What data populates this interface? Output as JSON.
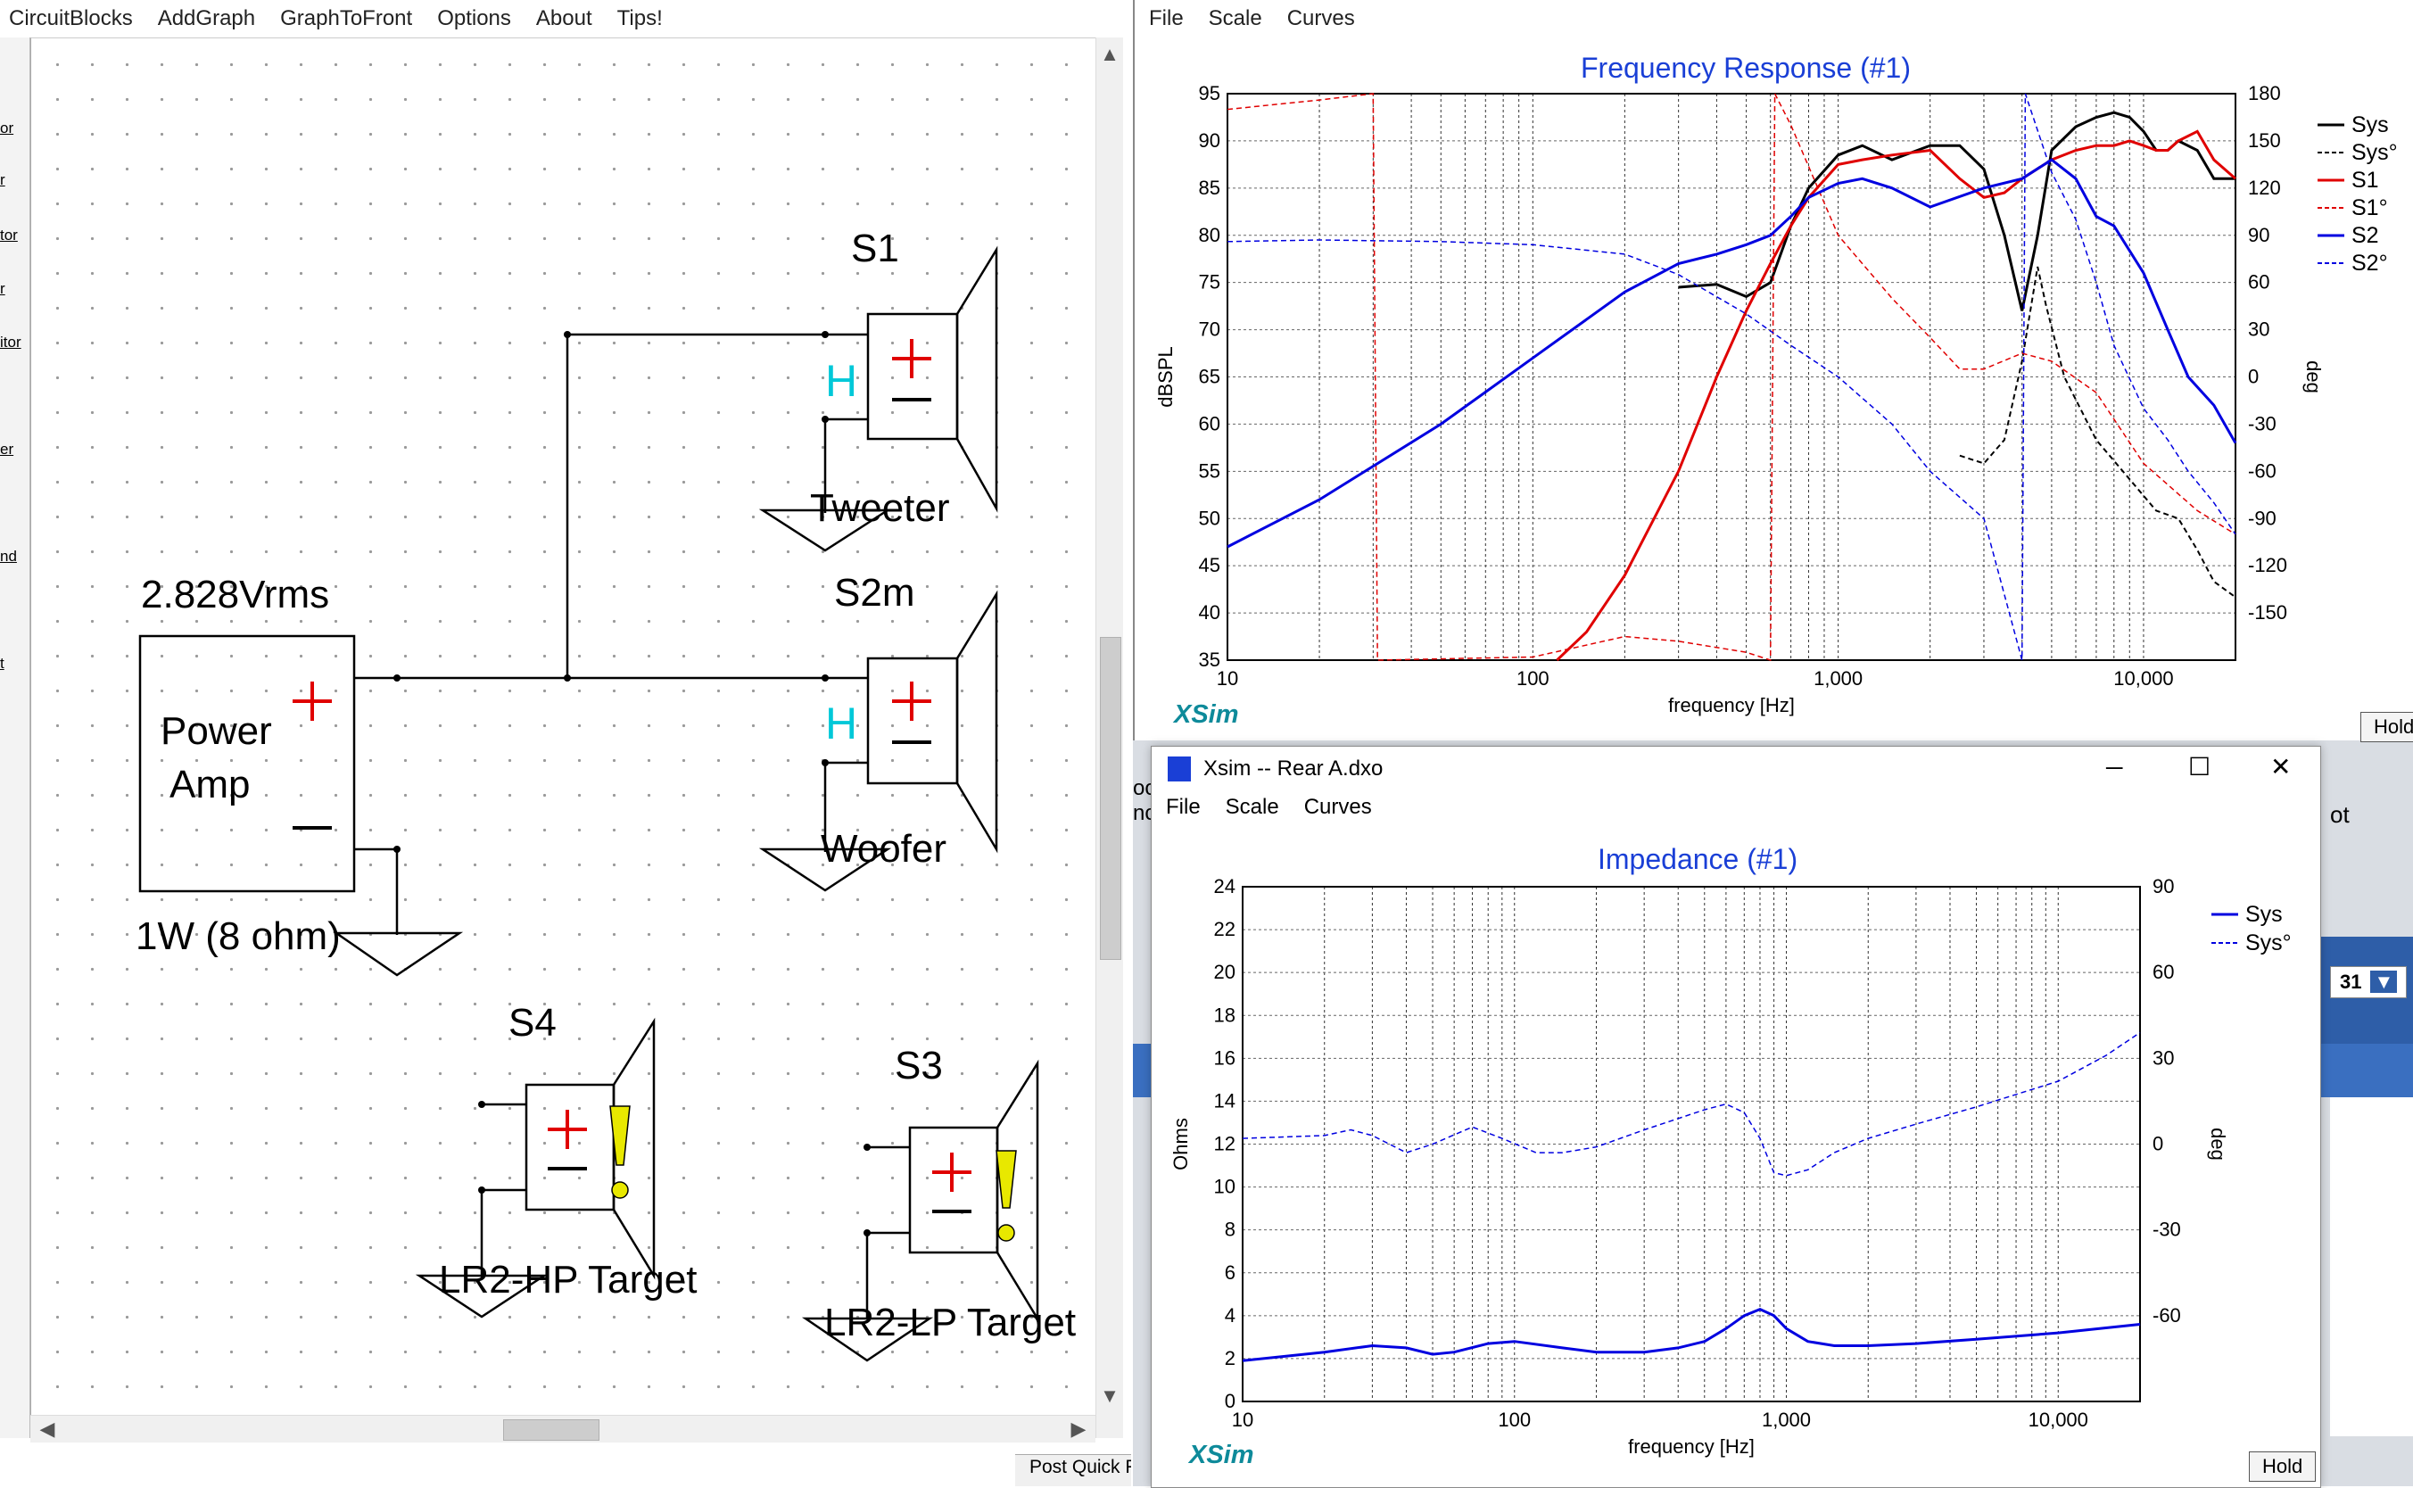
{
  "schematic": {
    "menu": [
      "CircuitBlocks",
      "AddGraph",
      "GraphToFront",
      "Options",
      "About",
      "Tips!"
    ],
    "gutter_fragments": [
      "or",
      "r",
      "tor",
      "r",
      "itor",
      "er",
      "nd",
      "t"
    ],
    "labels": {
      "s1": "S1",
      "s2m": "S2m",
      "s4": "S4",
      "s3": "S3",
      "tweeter": "Tweeter",
      "woofer": "Woofer",
      "hp_target": "LR2-HP Target",
      "lp_target": "LR2-LP Target",
      "voltage": "2.828Vrms",
      "amp_line1": "Power",
      "amp_line2": "Amp",
      "power_note": "1W (8 ohm)",
      "highpass_symbol": "H"
    },
    "colors": {
      "plus": "#e00000",
      "hp_symbol": "#00c8d8",
      "warning": "#e8e800"
    }
  },
  "freq_window": {
    "menu": [
      "File",
      "Scale",
      "Curves"
    ],
    "title": "Frequency Response (#1)",
    "xlabel": "frequency [Hz]",
    "ylabel": "dBSPL",
    "y2label": "deg",
    "logo": "XSim",
    "hold_label": "Hold"
  },
  "imp_window": {
    "titlebar": "Xsim -- Rear A.dxo",
    "menu": [
      "File",
      "Scale",
      "Curves"
    ],
    "title": "Impedance (#1)",
    "xlabel": "frequency [Hz]",
    "ylabel": "Ohms",
    "y2label": "deg",
    "logo": "XSim",
    "hold_label": "Hold",
    "window_controls": {
      "minimize": "─",
      "maximize": "☐",
      "close": "✕"
    }
  },
  "background_fragments": {
    "left_edge_text": [
      "oo",
      "nc"
    ],
    "right_edge_text": "ot",
    "number": "31",
    "footer": "Post Quick R"
  },
  "chart_data": [
    {
      "type": "line",
      "title": "Frequency Response (#1)",
      "xlabel": "frequency [Hz]",
      "ylabel": "dBSPL",
      "y2label": "deg",
      "xscale": "log",
      "xlim": [
        10,
        20000
      ],
      "ylim": [
        35,
        95
      ],
      "y2lim": [
        -180,
        180
      ],
      "xticks": [
        "10",
        "100",
        "1,000",
        "10,000"
      ],
      "yticks": [
        "35",
        "40",
        "45",
        "50",
        "55",
        "60",
        "65",
        "70",
        "75",
        "80",
        "85",
        "90",
        "95"
      ],
      "y2ticks": [
        "-150",
        "-120",
        "-90",
        "-60",
        "-30",
        "0",
        "30",
        "60",
        "90",
        "120",
        "150",
        "180"
      ],
      "grid": true,
      "legend_position": "right",
      "series": [
        {
          "name": "Sys",
          "axis": "y",
          "color": "#000000",
          "style": "solid",
          "width": 3,
          "points": [
            [
              300,
              74.5
            ],
            [
              400,
              74.8
            ],
            [
              500,
              73.5
            ],
            [
              600,
              75
            ],
            [
              700,
              81
            ],
            [
              800,
              85
            ],
            [
              1000,
              88.5
            ],
            [
              1200,
              89.5
            ],
            [
              1500,
              88
            ],
            [
              2000,
              89.5
            ],
            [
              2500,
              89.5
            ],
            [
              3000,
              87
            ],
            [
              3500,
              80
            ],
            [
              4000,
              72
            ],
            [
              4500,
              80
            ],
            [
              5000,
              89
            ],
            [
              6000,
              91.5
            ],
            [
              7000,
              92.5
            ],
            [
              8000,
              93
            ],
            [
              9000,
              92.5
            ],
            [
              10000,
              91
            ],
            [
              11000,
              89
            ],
            [
              12000,
              89
            ],
            [
              13000,
              90
            ],
            [
              15000,
              89
            ],
            [
              17000,
              86
            ],
            [
              20000,
              86
            ]
          ]
        },
        {
          "name": "Sys°",
          "axis": "y2",
          "color": "#000000",
          "style": "dashed",
          "width": 2,
          "points": [
            [
              2500,
              -50
            ],
            [
              3000,
              -55
            ],
            [
              3500,
              -40
            ],
            [
              4000,
              10
            ],
            [
              4500,
              70
            ],
            [
              4800,
              45
            ],
            [
              5500,
              0
            ],
            [
              7000,
              -40
            ],
            [
              9000,
              -65
            ],
            [
              11000,
              -85
            ],
            [
              13000,
              -90
            ],
            [
              15000,
              -110
            ],
            [
              17000,
              -130
            ],
            [
              20000,
              -140
            ]
          ]
        },
        {
          "name": "S1",
          "axis": "y",
          "color": "#e00000",
          "style": "solid",
          "width": 3,
          "points": [
            [
              120,
              35
            ],
            [
              150,
              38
            ],
            [
              200,
              44
            ],
            [
              300,
              55
            ],
            [
              400,
              65
            ],
            [
              500,
              72
            ],
            [
              600,
              77
            ],
            [
              700,
              81
            ],
            [
              800,
              84
            ],
            [
              1000,
              87.5
            ],
            [
              1200,
              88
            ],
            [
              1500,
              88.5
            ],
            [
              2000,
              89
            ],
            [
              2500,
              86
            ],
            [
              3000,
              84
            ],
            [
              3500,
              84.5
            ],
            [
              4000,
              86
            ],
            [
              5000,
              88
            ],
            [
              6000,
              89
            ],
            [
              7000,
              89.5
            ],
            [
              8000,
              89.5
            ],
            [
              9000,
              90
            ],
            [
              10000,
              89.5
            ],
            [
              11000,
              89
            ],
            [
              12000,
              89
            ],
            [
              13000,
              90
            ],
            [
              15000,
              91
            ],
            [
              17000,
              88
            ],
            [
              20000,
              86
            ]
          ]
        },
        {
          "name": "S1°",
          "axis": "y2",
          "color": "#e00000",
          "style": "dashed",
          "width": 1.5,
          "points": [
            [
              10,
              170
            ],
            [
              20,
              176
            ],
            [
              30,
              180
            ],
            [
              31,
              -180
            ],
            [
              100,
              -178
            ],
            [
              200,
              -165
            ],
            [
              300,
              -168
            ],
            [
              500,
              -175
            ],
            [
              600,
              -180
            ],
            [
              620,
              180
            ],
            [
              700,
              160
            ],
            [
              1000,
              90
            ],
            [
              1500,
              50
            ],
            [
              2000,
              25
            ],
            [
              2500,
              5
            ],
            [
              3000,
              5
            ],
            [
              4000,
              15
            ],
            [
              5000,
              10
            ],
            [
              7000,
              -10
            ],
            [
              10000,
              -55
            ],
            [
              15000,
              -85
            ],
            [
              20000,
              -100
            ]
          ]
        },
        {
          "name": "S2",
          "axis": "y",
          "color": "#0000e0",
          "style": "solid",
          "width": 3,
          "points": [
            [
              10,
              47
            ],
            [
              20,
              52
            ],
            [
              50,
              60
            ],
            [
              100,
              67
            ],
            [
              200,
              74
            ],
            [
              300,
              77
            ],
            [
              400,
              78
            ],
            [
              500,
              79
            ],
            [
              600,
              80
            ],
            [
              700,
              82
            ],
            [
              800,
              84
            ],
            [
              1000,
              85.5
            ],
            [
              1200,
              86
            ],
            [
              1500,
              85
            ],
            [
              2000,
              83
            ],
            [
              3000,
              85
            ],
            [
              4000,
              86
            ],
            [
              5000,
              88
            ],
            [
              6000,
              86
            ],
            [
              7000,
              82
            ],
            [
              8000,
              81
            ],
            [
              10000,
              76
            ],
            [
              12000,
              70
            ],
            [
              14000,
              65
            ],
            [
              17000,
              62
            ],
            [
              20000,
              58
            ]
          ]
        },
        {
          "name": "S2°",
          "axis": "y2",
          "color": "#0000e0",
          "style": "dashed",
          "width": 1.5,
          "points": [
            [
              10,
              86
            ],
            [
              20,
              87
            ],
            [
              50,
              86
            ],
            [
              100,
              84
            ],
            [
              200,
              78
            ],
            [
              300,
              65
            ],
            [
              500,
              40
            ],
            [
              700,
              20
            ],
            [
              1000,
              0
            ],
            [
              1500,
              -30
            ],
            [
              2000,
              -60
            ],
            [
              3000,
              -90
            ],
            [
              4000,
              -180
            ],
            [
              4100,
              180
            ],
            [
              5000,
              130
            ],
            [
              6000,
              100
            ],
            [
              7000,
              60
            ],
            [
              8000,
              20
            ],
            [
              10000,
              -20
            ],
            [
              12000,
              -40
            ],
            [
              14000,
              -60
            ],
            [
              17000,
              -80
            ],
            [
              20000,
              -100
            ]
          ]
        }
      ]
    },
    {
      "type": "line",
      "title": "Impedance (#1)",
      "xlabel": "frequency [Hz]",
      "ylabel": "Ohms",
      "y2label": "deg",
      "xscale": "log",
      "xlim": [
        10,
        20000
      ],
      "ylim": [
        0,
        24
      ],
      "y2lim": [
        -90,
        90
      ],
      "xticks": [
        "10",
        "100",
        "1,000",
        "10,000"
      ],
      "yticks": [
        "0",
        "2",
        "4",
        "6",
        "8",
        "10",
        "12",
        "14",
        "16",
        "18",
        "20",
        "22",
        "24"
      ],
      "y2ticks": [
        "-60",
        "-30",
        "0",
        "30",
        "60",
        "90"
      ],
      "grid": true,
      "legend_position": "top-right",
      "series": [
        {
          "name": "Sys",
          "axis": "y",
          "color": "#0000e0",
          "style": "solid",
          "width": 3,
          "points": [
            [
              10,
              1.9
            ],
            [
              20,
              2.3
            ],
            [
              30,
              2.6
            ],
            [
              40,
              2.5
            ],
            [
              50,
              2.2
            ],
            [
              60,
              2.3
            ],
            [
              80,
              2.7
            ],
            [
              100,
              2.8
            ],
            [
              150,
              2.5
            ],
            [
              200,
              2.3
            ],
            [
              300,
              2.3
            ],
            [
              400,
              2.5
            ],
            [
              500,
              2.8
            ],
            [
              600,
              3.4
            ],
            [
              700,
              4
            ],
            [
              800,
              4.3
            ],
            [
              900,
              4
            ],
            [
              1000,
              3.4
            ],
            [
              1200,
              2.8
            ],
            [
              1500,
              2.6
            ],
            [
              2000,
              2.6
            ],
            [
              3000,
              2.7
            ],
            [
              5000,
              2.9
            ],
            [
              10000,
              3.2
            ],
            [
              20000,
              3.6
            ]
          ]
        },
        {
          "name": "Sys°",
          "axis": "y2",
          "color": "#0000e0",
          "style": "dashed",
          "width": 1.5,
          "points": [
            [
              10,
              2
            ],
            [
              20,
              3
            ],
            [
              25,
              5
            ],
            [
              30,
              3
            ],
            [
              40,
              -3
            ],
            [
              50,
              0
            ],
            [
              70,
              6
            ],
            [
              90,
              2
            ],
            [
              120,
              -3
            ],
            [
              150,
              -3
            ],
            [
              200,
              -1
            ],
            [
              300,
              5
            ],
            [
              500,
              12
            ],
            [
              600,
              14
            ],
            [
              700,
              11
            ],
            [
              800,
              2
            ],
            [
              900,
              -10
            ],
            [
              1000,
              -11
            ],
            [
              1200,
              -9
            ],
            [
              1500,
              -3
            ],
            [
              2000,
              2
            ],
            [
              3000,
              7
            ],
            [
              5000,
              13
            ],
            [
              10000,
              22
            ],
            [
              15000,
              31
            ],
            [
              20000,
              39
            ]
          ]
        }
      ]
    }
  ]
}
